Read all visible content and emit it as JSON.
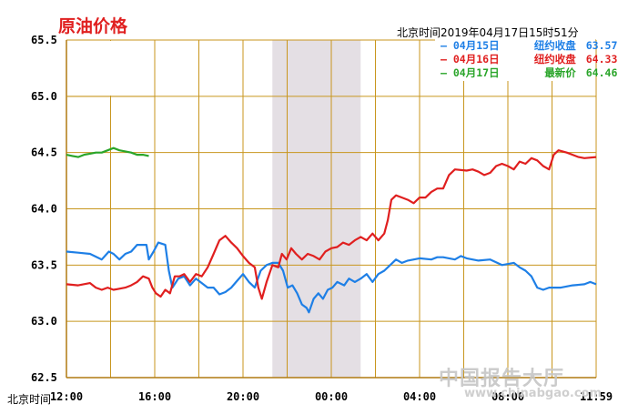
{
  "title": "原油价格",
  "timestamp": "北京时间2019年04月17日15时51分",
  "x_axis_name": "北京时间",
  "watermark": "中国报告大厅",
  "watermark_sub": "www.chinabgao.com",
  "legend": [
    {
      "label": "04月15日",
      "kind": "纽约收盘",
      "value": "63.57",
      "color": "#1e7fe6"
    },
    {
      "label": "04月16日",
      "kind": "纽约收盘",
      "value": "64.33",
      "color": "#e01f1f"
    },
    {
      "label": "04月17日",
      "kind": "最新价",
      "value": "64.46",
      "color": "#2aa52a"
    }
  ],
  "chart_data": {
    "type": "line",
    "title": "原油价格",
    "xlabel": "北京时间",
    "x_ticks": [
      "12:00",
      "16:00",
      "20:00",
      "00:00",
      "04:00",
      "08:00",
      "11:59"
    ],
    "y_ticks": [
      "62.5",
      "63.0",
      "63.5",
      "64.0",
      "64.5",
      "65.0",
      "65.5"
    ],
    "ylim": [
      62.5,
      65.5
    ],
    "x_range_hours": [
      0,
      24
    ],
    "shaded_band_hours": [
      9.33,
      13.33
    ],
    "grid": true,
    "legend_position": "top-right",
    "series": [
      {
        "name": "04月15日",
        "color": "#1e7fe6",
        "points": [
          [
            0,
            63.62
          ],
          [
            1,
            63.61
          ],
          [
            2,
            63.6
          ],
          [
            3,
            63.55
          ],
          [
            3.6,
            63.62
          ],
          [
            4,
            63.6
          ],
          [
            4.5,
            63.55
          ],
          [
            5,
            63.6
          ],
          [
            5.5,
            63.62
          ],
          [
            6,
            63.68
          ],
          [
            6.8,
            63.68
          ],
          [
            7,
            63.55
          ],
          [
            7.4,
            63.62
          ],
          [
            7.8,
            63.7
          ],
          [
            8.4,
            63.68
          ],
          [
            8.7,
            63.45
          ],
          [
            9,
            63.3
          ],
          [
            9.5,
            63.38
          ],
          [
            10,
            63.4
          ],
          [
            10.5,
            63.32
          ],
          [
            11,
            63.38
          ],
          [
            11.5,
            63.34
          ],
          [
            12,
            63.3
          ],
          [
            12.5,
            63.3
          ],
          [
            13,
            63.24
          ],
          [
            13.5,
            63.26
          ],
          [
            14,
            63.3
          ],
          [
            14.5,
            63.36
          ],
          [
            15,
            63.42
          ],
          [
            15.5,
            63.35
          ],
          [
            16,
            63.3
          ],
          [
            16.5,
            63.45
          ],
          [
            17,
            63.5
          ],
          [
            17.5,
            63.52
          ],
          [
            18,
            63.52
          ],
          [
            18.4,
            63.45
          ],
          [
            18.8,
            63.3
          ],
          [
            19.2,
            63.32
          ],
          [
            19.6,
            63.25
          ],
          [
            20,
            63.15
          ],
          [
            20.4,
            63.12
          ],
          [
            20.6,
            63.08
          ],
          [
            21,
            63.2
          ],
          [
            21.4,
            63.25
          ],
          [
            21.8,
            63.2
          ],
          [
            22.2,
            63.28
          ],
          [
            22.6,
            63.3
          ],
          [
            23,
            63.35
          ],
          [
            23.6,
            63.32
          ],
          [
            24,
            63.38
          ],
          [
            24.5,
            63.35
          ],
          [
            25,
            63.38
          ],
          [
            25.5,
            63.42
          ],
          [
            26,
            63.35
          ],
          [
            26.5,
            63.42
          ],
          [
            27,
            63.45
          ],
          [
            27.5,
            63.5
          ],
          [
            28,
            63.55
          ],
          [
            28.5,
            63.52
          ],
          [
            29,
            63.54
          ],
          [
            30,
            63.56
          ],
          [
            31,
            63.55
          ],
          [
            31.5,
            63.57
          ],
          [
            32,
            63.57
          ],
          [
            33,
            63.55
          ],
          [
            33.5,
            63.58
          ],
          [
            34,
            63.56
          ],
          [
            34.5,
            63.55
          ],
          [
            35,
            63.54
          ],
          [
            36,
            63.55
          ],
          [
            37,
            63.5
          ],
          [
            38,
            63.52
          ],
          [
            38.5,
            63.48
          ],
          [
            39,
            63.45
          ],
          [
            39.5,
            63.4
          ],
          [
            40,
            63.3
          ],
          [
            40.5,
            63.28
          ],
          [
            41,
            63.3
          ],
          [
            42,
            63.3
          ],
          [
            43,
            63.32
          ],
          [
            44,
            63.33
          ],
          [
            44.5,
            63.35
          ],
          [
            45,
            63.33
          ]
        ]
      },
      {
        "name": "04月16日",
        "color": "#e01f1f",
        "points": [
          [
            0,
            63.33
          ],
          [
            1,
            63.32
          ],
          [
            2,
            63.34
          ],
          [
            2.5,
            63.3
          ],
          [
            3,
            63.28
          ],
          [
            3.5,
            63.3
          ],
          [
            4,
            63.28
          ],
          [
            5,
            63.3
          ],
          [
            5.5,
            63.32
          ],
          [
            6,
            63.35
          ],
          [
            6.5,
            63.4
          ],
          [
            7,
            63.38
          ],
          [
            7.3,
            63.3
          ],
          [
            7.6,
            63.25
          ],
          [
            8,
            63.22
          ],
          [
            8.4,
            63.28
          ],
          [
            8.8,
            63.25
          ],
          [
            9.2,
            63.4
          ],
          [
            9.6,
            63.4
          ],
          [
            10,
            63.42
          ],
          [
            10.5,
            63.35
          ],
          [
            11,
            63.42
          ],
          [
            11.5,
            63.4
          ],
          [
            12,
            63.48
          ],
          [
            12.5,
            63.6
          ],
          [
            13,
            63.72
          ],
          [
            13.5,
            63.76
          ],
          [
            14,
            63.7
          ],
          [
            14.5,
            63.65
          ],
          [
            15,
            63.58
          ],
          [
            15.5,
            63.52
          ],
          [
            16,
            63.48
          ],
          [
            16.3,
            63.3
          ],
          [
            16.6,
            63.2
          ],
          [
            17,
            63.35
          ],
          [
            17.5,
            63.5
          ],
          [
            18,
            63.48
          ],
          [
            18.3,
            63.6
          ],
          [
            18.7,
            63.55
          ],
          [
            19.1,
            63.65
          ],
          [
            19.5,
            63.6
          ],
          [
            20,
            63.55
          ],
          [
            20.5,
            63.6
          ],
          [
            21,
            63.58
          ],
          [
            21.5,
            63.55
          ],
          [
            22,
            63.62
          ],
          [
            22.5,
            63.65
          ],
          [
            23,
            63.66
          ],
          [
            23.5,
            63.7
          ],
          [
            24,
            63.68
          ],
          [
            24.5,
            63.72
          ],
          [
            25,
            63.75
          ],
          [
            25.5,
            63.72
          ],
          [
            26,
            63.78
          ],
          [
            26.5,
            63.72
          ],
          [
            27,
            63.78
          ],
          [
            27.3,
            63.9
          ],
          [
            27.6,
            64.08
          ],
          [
            28,
            64.12
          ],
          [
            28.5,
            64.1
          ],
          [
            29,
            64.08
          ],
          [
            29.5,
            64.05
          ],
          [
            30,
            64.1
          ],
          [
            30.5,
            64.1
          ],
          [
            31,
            64.15
          ],
          [
            31.5,
            64.18
          ],
          [
            32,
            64.18
          ],
          [
            32.5,
            64.3
          ],
          [
            33,
            64.35
          ],
          [
            34,
            64.34
          ],
          [
            34.5,
            64.35
          ],
          [
            35,
            64.33
          ],
          [
            35.5,
            64.3
          ],
          [
            36,
            64.32
          ],
          [
            36.5,
            64.38
          ],
          [
            37,
            64.4
          ],
          [
            37.5,
            64.38
          ],
          [
            38,
            64.35
          ],
          [
            38.5,
            64.42
          ],
          [
            39,
            64.4
          ],
          [
            39.5,
            64.45
          ],
          [
            40,
            64.43
          ],
          [
            40.5,
            64.38
          ],
          [
            41,
            64.35
          ],
          [
            41.4,
            64.48
          ],
          [
            41.8,
            64.52
          ],
          [
            42.5,
            64.5
          ],
          [
            43,
            64.48
          ],
          [
            43.5,
            64.46
          ],
          [
            44,
            64.45
          ],
          [
            45,
            64.46
          ]
        ]
      },
      {
        "name": "04月17日",
        "color": "#2aa52a",
        "points": [
          [
            0,
            64.48
          ],
          [
            0.5,
            64.47
          ],
          [
            1,
            64.46
          ],
          [
            1.5,
            64.48
          ],
          [
            2,
            64.49
          ],
          [
            2.5,
            64.5
          ],
          [
            3,
            64.5
          ],
          [
            3.5,
            64.52
          ],
          [
            4,
            64.54
          ],
          [
            4.5,
            64.52
          ],
          [
            5,
            64.51
          ],
          [
            5.5,
            64.5
          ],
          [
            6,
            64.48
          ],
          [
            6.5,
            64.48
          ],
          [
            7,
            64.47
          ]
        ]
      }
    ]
  }
}
